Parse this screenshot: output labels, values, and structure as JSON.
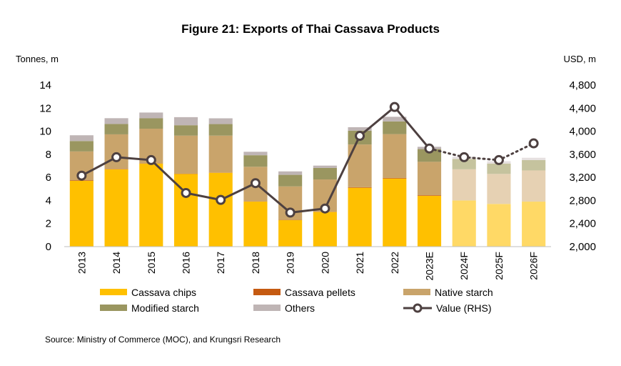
{
  "chart_data": {
    "type": "bar",
    "title": "Figure 21: Exports of Thai Cassava Products",
    "ylabel": "Tonnes, m",
    "y2label": "USD, m",
    "ylim": [
      0,
      14
    ],
    "y2lim": [
      2000,
      4800
    ],
    "yticks": [
      "0",
      "2",
      "4",
      "6",
      "8",
      "10",
      "12",
      "14"
    ],
    "y2ticks": [
      "2,000",
      "2,400",
      "2,800",
      "3,200",
      "3,600",
      "4,000",
      "4,400",
      "4,800"
    ],
    "stacked": true,
    "categories": [
      "2013",
      "2014",
      "2015",
      "2016",
      "2017",
      "2018",
      "2019",
      "2020",
      "2021",
      "2022",
      "2023E",
      "2024F",
      "2025F",
      "2026F"
    ],
    "forecast_from_index": 11,
    "series": [
      {
        "name": "Cassava chips",
        "color": "#FFC000",
        "forecast_color": "#FFD966",
        "values": [
          5.7,
          6.7,
          7.2,
          6.3,
          6.4,
          3.9,
          2.3,
          3.0,
          5.1,
          5.9,
          4.4,
          4.0,
          3.7,
          3.9
        ]
      },
      {
        "name": "Cassava pellets",
        "color": "#C55A11",
        "forecast_color": "#E8B08A",
        "values": [
          0.05,
          0.03,
          0.02,
          0.02,
          0.02,
          0.02,
          0.02,
          0.02,
          0.05,
          0.05,
          0.05,
          0.0,
          0.0,
          0.0
        ]
      },
      {
        "name": "Native starch",
        "color": "#C9A46B",
        "forecast_color": "#E6D1B3",
        "values": [
          2.5,
          3.0,
          3.0,
          3.3,
          3.2,
          3.0,
          2.9,
          2.8,
          3.7,
          3.8,
          2.9,
          2.7,
          2.6,
          2.7
        ]
      },
      {
        "name": "Modified starch",
        "color": "#9A9660",
        "forecast_color": "#C5C39E",
        "values": [
          0.9,
          0.9,
          0.9,
          0.9,
          1.0,
          1.0,
          1.0,
          1.0,
          1.2,
          1.1,
          1.1,
          0.9,
          0.9,
          0.9
        ]
      },
      {
        "name": "Others",
        "color": "#BFB5B5",
        "forecast_color": "#E6E0E0",
        "values": [
          0.5,
          0.5,
          0.5,
          0.7,
          0.5,
          0.3,
          0.3,
          0.2,
          0.3,
          0.4,
          0.2,
          0.2,
          0.2,
          0.2
        ]
      }
    ],
    "line_series": {
      "name": "Value (RHS)",
      "color": "#4D4040",
      "axis": "right",
      "values": [
        3230,
        3550,
        3500,
        2930,
        2810,
        3100,
        2590,
        2660,
        3920,
        4420,
        3700,
        3550,
        3500,
        3790
      ]
    },
    "legend": "bottom",
    "grid": false
  },
  "source": "Source: Ministry of Commerce (MOC), and Krungsri Research"
}
